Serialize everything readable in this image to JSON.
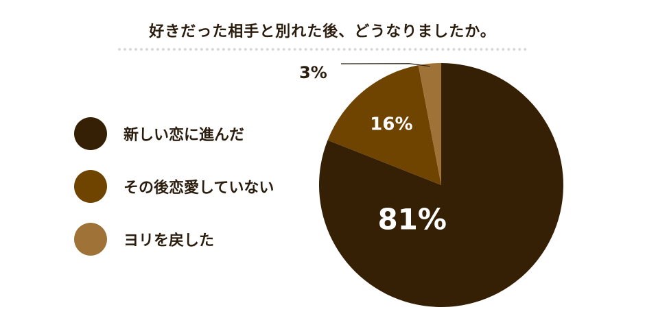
{
  "chart_data": {
    "type": "pie",
    "title": "好きだった相手と別れた後、どうなりましたか。",
    "slices": [
      {
        "label": "新しい恋に進んだ",
        "value": 81,
        "display": "81%",
        "color": "#352006"
      },
      {
        "label": "その後恋愛していない",
        "value": 16,
        "display": "16%",
        "color": "#6f4300"
      },
      {
        "label": "ヨリを戻した",
        "value": 3,
        "display": "3%",
        "color": "#9f7338"
      }
    ],
    "legend_position": "left",
    "start_angle_deg": 0,
    "direction": "clockwise"
  }
}
